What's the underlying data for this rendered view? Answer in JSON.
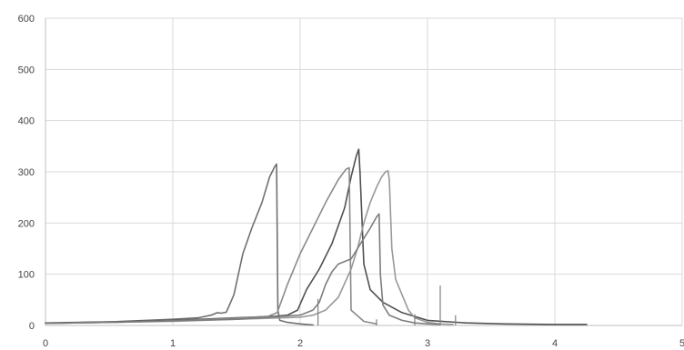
{
  "chart_data": {
    "type": "line",
    "title": "",
    "xlabel": "",
    "ylabel": "",
    "xlim": [
      0,
      5
    ],
    "ylim": [
      0,
      600
    ],
    "x_ticks": [
      0,
      1,
      2,
      3,
      4,
      5
    ],
    "x_tick_labels": [
      "0",
      "1",
      "2",
      "3",
      "4",
      "5"
    ],
    "y_ticks": [
      0,
      100,
      200,
      300,
      400,
      500,
      600
    ],
    "y_tick_labels": [
      "0",
      "100",
      "200",
      "300",
      "400",
      "500",
      "600"
    ],
    "grid": true,
    "legend": "none",
    "series": [
      {
        "color": "#707070",
        "x": [
          0.0,
          0.5,
          1.0,
          1.2,
          1.3,
          1.35,
          1.38,
          1.42,
          1.48,
          1.55,
          1.62,
          1.7,
          1.76,
          1.8,
          1.815,
          1.825,
          1.84,
          1.9,
          2.0,
          2.1
        ],
        "y": [
          4,
          7,
          12,
          15,
          20,
          25,
          24,
          26,
          60,
          140,
          190,
          240,
          290,
          310,
          315,
          30,
          10,
          6,
          3,
          1
        ]
      },
      {
        "color": "#505050",
        "x": [
          0.0,
          0.5,
          1.0,
          1.5,
          1.8,
          1.9,
          1.98,
          2.05,
          2.15,
          2.25,
          2.35,
          2.4,
          2.44,
          2.46,
          2.47,
          2.5,
          2.55,
          2.65,
          2.8,
          3.0,
          3.3,
          3.6,
          4.0,
          4.25
        ],
        "y": [
          5,
          7,
          10,
          15,
          18,
          20,
          30,
          70,
          110,
          160,
          230,
          290,
          330,
          344,
          300,
          120,
          70,
          45,
          25,
          10,
          5,
          3,
          2,
          2
        ]
      },
      {
        "color": "#8a8a8a",
        "x": [
          0.0,
          0.5,
          1.0,
          1.5,
          1.75,
          1.82,
          1.9,
          2.0,
          2.1,
          2.2,
          2.3,
          2.36,
          2.385,
          2.4,
          2.5,
          2.6
        ],
        "y": [
          4,
          6,
          9,
          14,
          18,
          25,
          80,
          140,
          190,
          240,
          285,
          305,
          308,
          30,
          8,
          3
        ]
      },
      {
        "color": "#999999",
        "x": [
          0.0,
          0.5,
          1.0,
          1.5,
          2.0,
          2.1,
          2.2,
          2.3,
          2.4,
          2.45,
          2.5,
          2.55,
          2.6,
          2.64,
          2.67,
          2.69,
          2.7,
          2.72,
          2.75,
          2.8,
          2.85,
          2.9,
          3.0,
          3.1,
          3.2
        ],
        "y": [
          4,
          6,
          8,
          12,
          16,
          20,
          30,
          55,
          110,
          150,
          200,
          240,
          270,
          290,
          300,
          302,
          285,
          150,
          90,
          60,
          30,
          15,
          6,
          3,
          2
        ]
      },
      {
        "color": "#7d7d7d",
        "x": [
          0.0,
          0.5,
          1.0,
          1.5,
          2.0,
          2.1,
          2.15,
          2.2,
          2.25,
          2.3,
          2.35,
          2.4,
          2.45,
          2.5,
          2.55,
          2.6,
          2.62,
          2.63,
          2.65,
          2.7,
          2.8,
          2.9,
          3.0,
          3.1
        ],
        "y": [
          4,
          6,
          9,
          12,
          20,
          30,
          45,
          80,
          105,
          120,
          125,
          130,
          150,
          170,
          190,
          212,
          218,
          100,
          40,
          20,
          10,
          5,
          3,
          2
        ]
      }
    ],
    "spikes": [
      {
        "x": 2.14,
        "y": 52
      },
      {
        "x": 2.6,
        "y": 12
      },
      {
        "x": 2.9,
        "y": 22
      },
      {
        "x": 3.1,
        "y": 78
      },
      {
        "x": 3.22,
        "y": 20
      }
    ]
  }
}
